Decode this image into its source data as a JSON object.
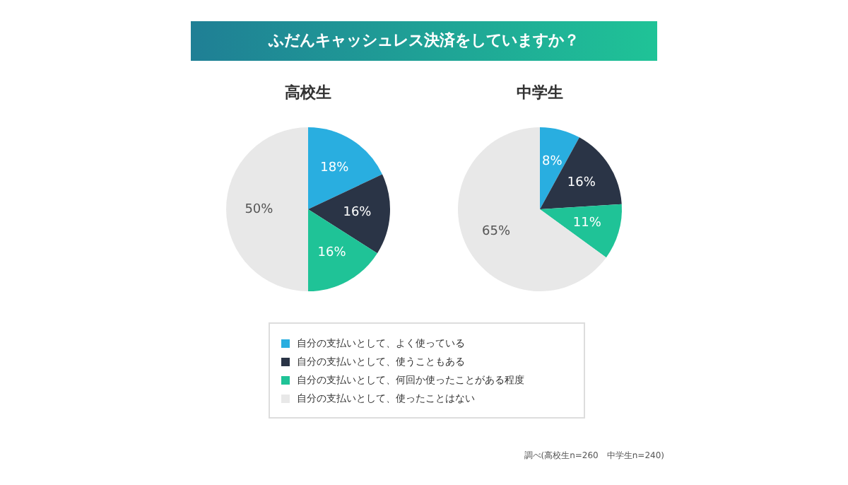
{
  "chart_data": [
    {
      "type": "pie",
      "title": "ふだんキャッシュレス決済をしていますか？",
      "subtitle": "高校生",
      "categories": [
        "自分の支払いとして、よく使っている",
        "自分の支払いとして、使うこともある",
        "自分の支払いとして、何回か使ったことがある程度",
        "自分の支払いとして、使ったことはない"
      ],
      "values": [
        18,
        16,
        16,
        50
      ],
      "colors": [
        "#29aee0",
        "#2a3446",
        "#1fc397",
        "#e8e8e8"
      ],
      "value_labels": [
        "18%",
        "16%",
        "16%",
        "50%"
      ],
      "legend": "bottom"
    },
    {
      "type": "pie",
      "subtitle": "中学生",
      "categories": [
        null,
        null,
        null,
        null
      ],
      "values": [
        8,
        16,
        11,
        65
      ],
      "colors": [
        "#29aee0",
        "#2a3446",
        "#1fc397",
        "#e8e8e8"
      ],
      "value_labels": [
        "8%",
        "16%",
        "11%",
        "65%"
      ],
      "annotations": [
        "調べ(高校生n=260　中学生n=240)"
      ]
    }
  ]
}
